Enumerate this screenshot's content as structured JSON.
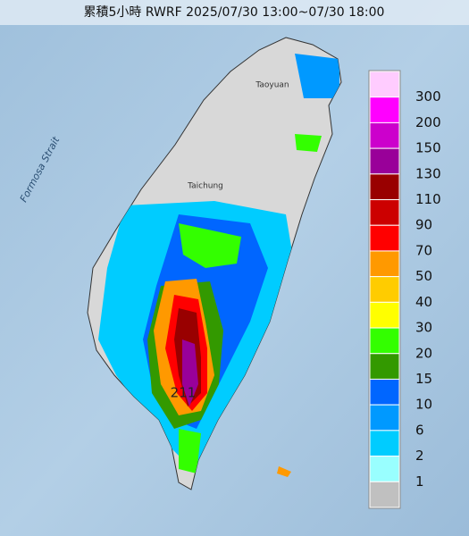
{
  "title": "累積5小時 RWRF 2025/07/30 13:00~07/30 18:00",
  "map_labels": {
    "sea": "Formosa Strait",
    "north_city": "Taoyuan",
    "central_city": "Taichung",
    "max_value": "211"
  },
  "legend": {
    "colors": [
      "#ffccff",
      "#ff00ff",
      "#cc00cc",
      "#990099",
      "#990000",
      "#cc0000",
      "#ff0000",
      "#ff9900",
      "#ffcc00",
      "#ffff00",
      "#33ff00",
      "#339900",
      "#0066ff",
      "#0099ff",
      "#00ccff",
      "#99ffff",
      "#c0c0c0"
    ],
    "labels": [
      300,
      200,
      150,
      130,
      110,
      90,
      70,
      50,
      40,
      30,
      20,
      15,
      10,
      6,
      2,
      1
    ]
  }
}
